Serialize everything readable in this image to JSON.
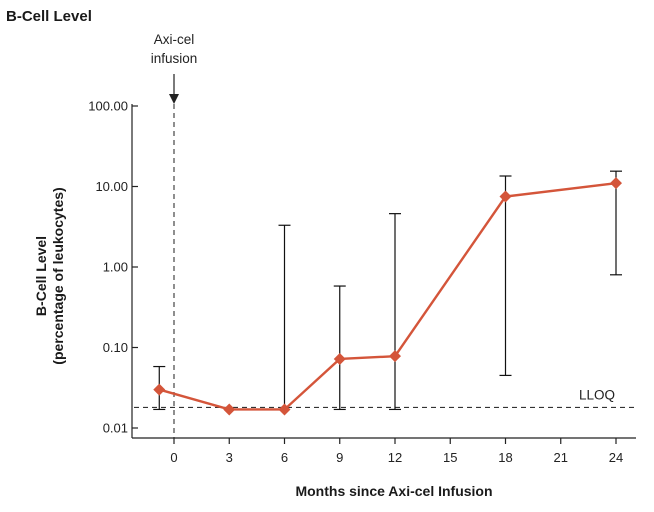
{
  "chart_data": {
    "type": "line",
    "title": "B-Cell Level",
    "xlabel": "Months since Axi-cel Infusion",
    "ylabel": [
      "B-Cell Level",
      "(percentage of leukocytes)"
    ],
    "yscale": "log",
    "ylim": [
      0.01,
      100
    ],
    "xlim": [
      -2,
      25
    ],
    "x_ticks": [
      0,
      3,
      6,
      9,
      12,
      15,
      18,
      21,
      24
    ],
    "y_ticks": [
      {
        "value": 0.01,
        "label": "0.01"
      },
      {
        "value": 0.1,
        "label": "0.10"
      },
      {
        "value": 1,
        "label": "1.00"
      },
      {
        "value": 10,
        "label": "10.00"
      },
      {
        "value": 100,
        "label": "100.00"
      }
    ],
    "grid": false,
    "series": [
      {
        "color": "#d4553a",
        "marker": "diamond",
        "x": [
          -0.8,
          3,
          6,
          9,
          12,
          18,
          24
        ],
        "y": [
          0.03,
          0.017,
          0.017,
          0.072,
          0.078,
          7.5,
          11
        ],
        "error_low": [
          0.017,
          null,
          null,
          0.017,
          0.017,
          0.045,
          0.8
        ],
        "error_high": [
          0.058,
          null,
          3.3,
          0.58,
          4.6,
          13.5,
          15.5
        ]
      }
    ],
    "annotations": {
      "infusion": {
        "label_lines": [
          "Axi-cel",
          "infusion"
        ],
        "x": 0
      },
      "lloq": {
        "label": "LLOQ",
        "y": 0.018
      }
    }
  }
}
